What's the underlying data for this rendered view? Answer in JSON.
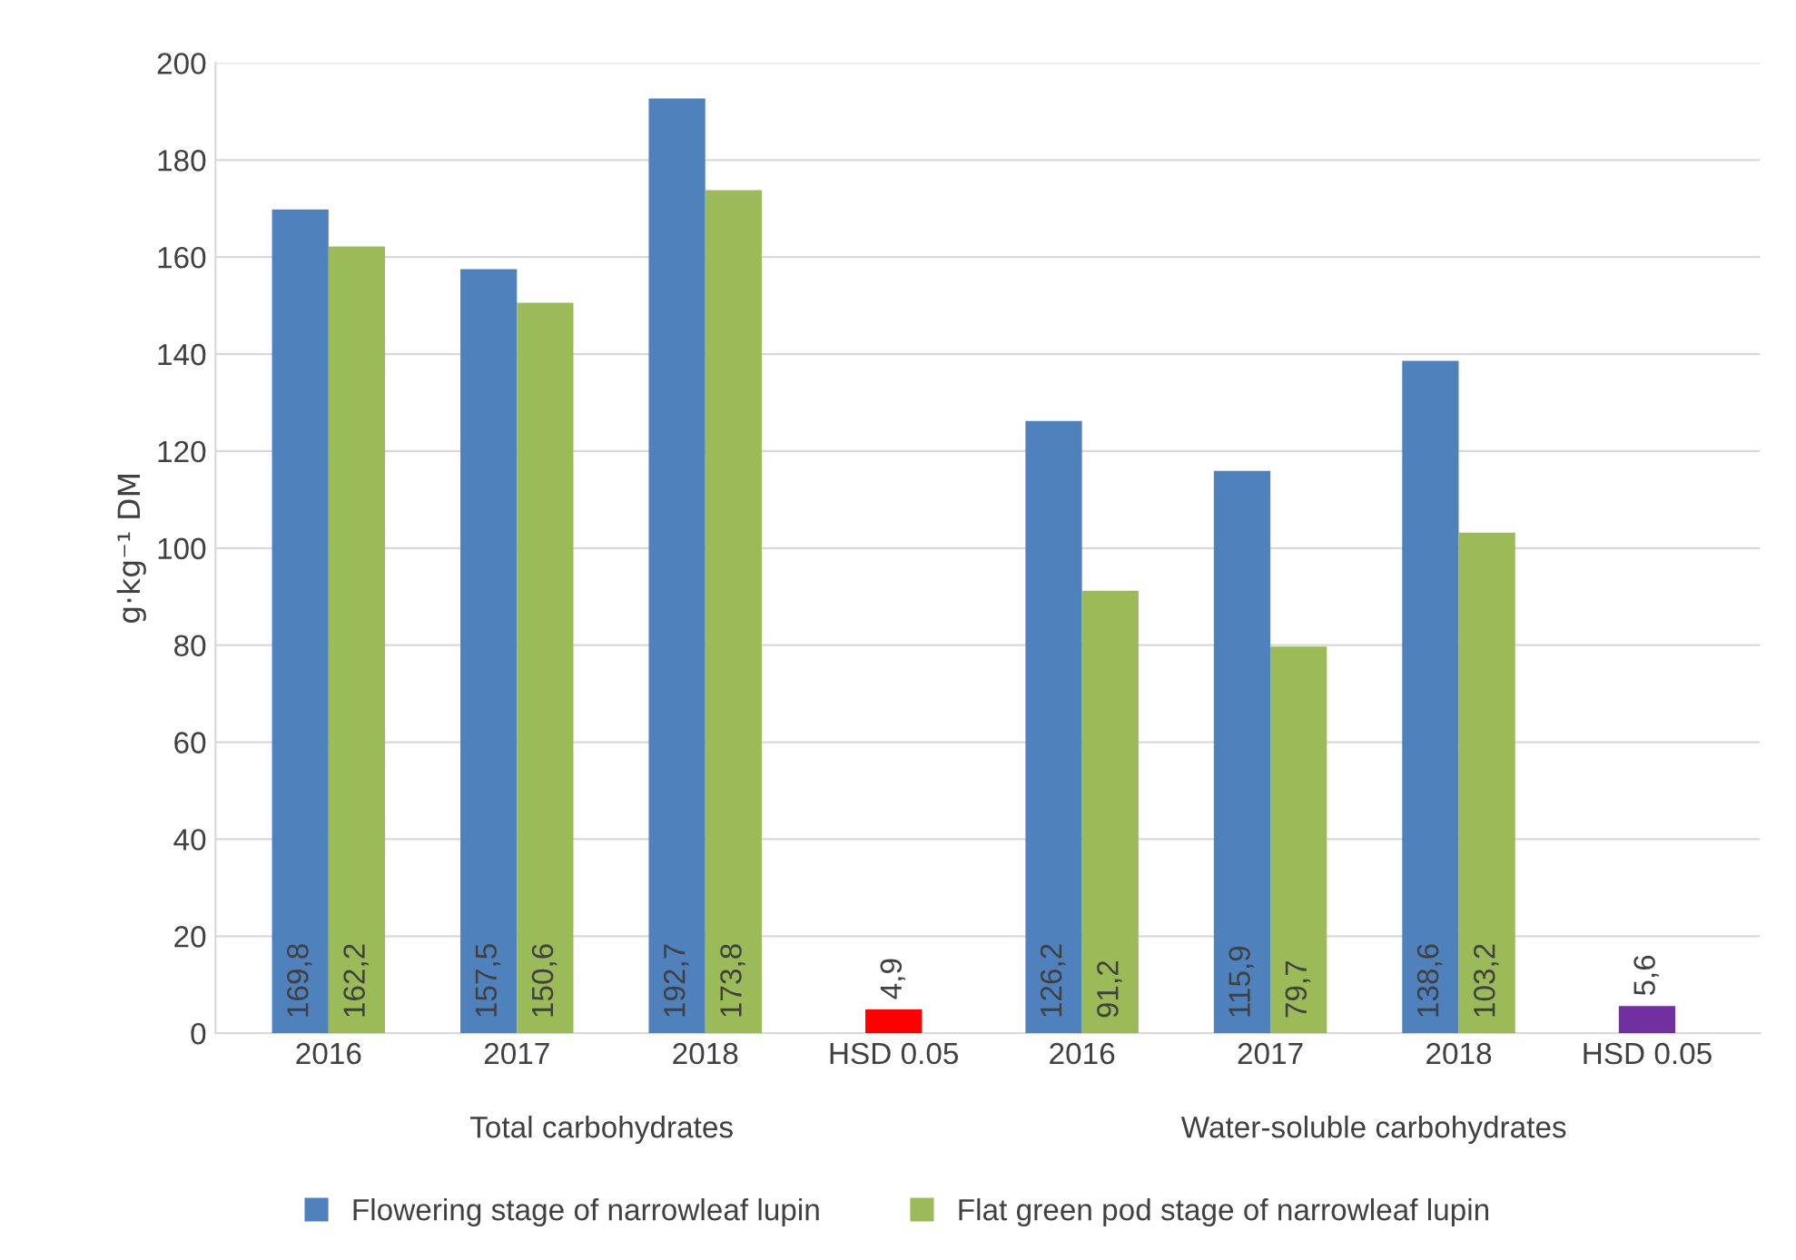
{
  "chart_data": {
    "type": "bar",
    "ylabel": "g·kg⁻¹ DM",
    "categories": [
      "2016",
      "2017",
      "2018",
      "HSD 0.05",
      "2016",
      "2017",
      "2018",
      "HSD 0.05"
    ],
    "series": [
      {
        "name": "Flowering stage of narrowleaf lupin",
        "color": "#4f81bd",
        "values": [
          169.8,
          157.5,
          192.7,
          null,
          126.2,
          115.9,
          138.6,
          null
        ],
        "value_labels": [
          "169,8",
          "157,5",
          "192,7",
          null,
          "126,2",
          "115,9",
          "138,6",
          null
        ]
      },
      {
        "name": "Flat green pod stage of narrowleaf lupin",
        "color": "#9bbb59",
        "values": [
          162.2,
          150.6,
          173.8,
          null,
          91.2,
          79.7,
          103.2,
          null
        ],
        "value_labels": [
          "162,2",
          "150,6",
          "173,8",
          null,
          "91,2",
          "79,7",
          "103,2",
          null
        ]
      },
      {
        "colors": [
          "#ff0000",
          "#ff0000",
          "#ff0000",
          "#ff0000",
          "#7030a0",
          "#7030a0",
          "#7030a0",
          "#7030a0"
        ],
        "values": [
          null,
          null,
          null,
          4.9,
          null,
          null,
          null,
          5.6
        ],
        "value_labels": [
          null,
          null,
          null,
          "4,9",
          null,
          null,
          null,
          "5,6"
        ]
      }
    ],
    "annotations": [
      "Total carbohydrates",
      "Water-soluble carbohydrates"
    ],
    "ylim": [
      0,
      200
    ],
    "yticks": [
      0,
      20,
      40,
      60,
      80,
      100,
      120,
      140,
      160,
      180,
      200
    ],
    "grid": "y",
    "legend": "bottom"
  }
}
